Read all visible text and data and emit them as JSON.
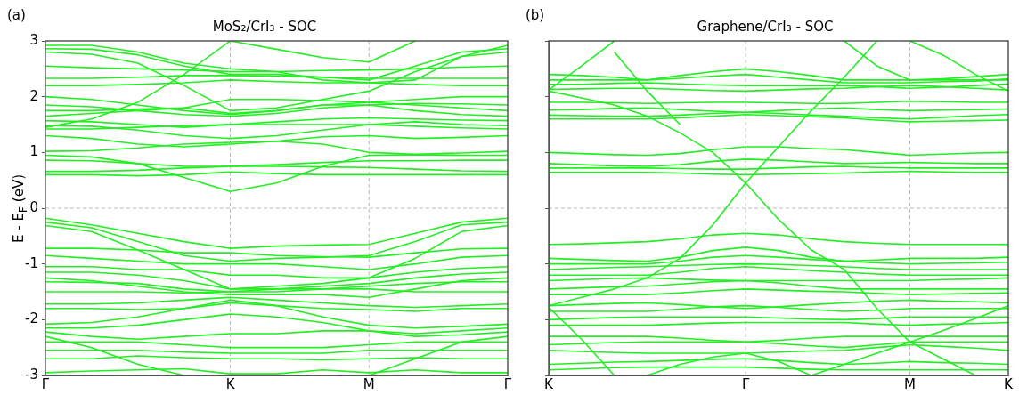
{
  "chart_data": [
    {
      "type": "line",
      "title": "MoS₂/CrI₃ - SOC",
      "ylabel": "E - E$_{F}$ (eV)",
      "annotations": [
        "(a)"
      ],
      "marker": "none",
      "legend": false,
      "categories": [
        "Γ",
        null,
        null,
        null,
        "K",
        null,
        null,
        "M",
        null,
        null,
        "Γ"
      ],
      "ylim": [
        -3,
        3
      ],
      "yticks": [
        -3,
        -2,
        -1,
        0,
        1,
        2,
        3
      ],
      "ref_lines": [
        {
          "axis": "x",
          "value": "K",
          "color": "#bbbbbb",
          "line_style": "dashed"
        },
        {
          "axis": "x",
          "value": "M",
          "color": "#bbbbbb",
          "line_style": "dashed"
        },
        {
          "axis": "y",
          "value": 0,
          "color": "#bbbbbb",
          "line_style": "dashed"
        }
      ],
      "series": [
        {
          "color": "#22ee22",
          "values": [
            0.6,
            0.6,
            0.58,
            0.6,
            0.65,
            0.62,
            0.6,
            0.6,
            0.6,
            0.6,
            0.6
          ]
        },
        {
          "color": "#22ee22",
          "values": [
            0.66,
            0.66,
            0.68,
            0.72,
            0.75,
            0.75,
            0.74,
            0.73,
            0.7,
            0.67,
            0.66
          ]
        },
        {
          "color": "#22ee22",
          "values": [
            0.95,
            0.92,
            0.8,
            0.55,
            0.3,
            0.45,
            0.75,
            0.95,
            0.96,
            0.95,
            0.95
          ]
        },
        {
          "color": "#22ee22",
          "values": [
            0.86,
            0.85,
            0.8,
            0.75,
            0.75,
            0.78,
            0.82,
            0.85,
            0.85,
            0.86,
            0.86
          ]
        },
        {
          "color": "#22ee22",
          "values": [
            1.02,
            1.03,
            1.08,
            1.15,
            1.18,
            1.2,
            1.15,
            1.0,
            0.97,
            0.99,
            1.02
          ]
        },
        {
          "color": "#22ee22",
          "values": [
            1.3,
            1.25,
            1.15,
            1.1,
            1.15,
            1.2,
            1.28,
            1.3,
            1.25,
            1.27,
            1.3
          ]
        },
        {
          "color": "#22ee22",
          "values": [
            1.42,
            1.42,
            1.45,
            1.48,
            1.5,
            1.5,
            1.5,
            1.5,
            1.47,
            1.44,
            1.42
          ]
        },
        {
          "color": "#22ee22",
          "values": [
            1.48,
            1.47,
            1.4,
            1.3,
            1.25,
            1.3,
            1.4,
            1.5,
            1.55,
            1.5,
            1.48
          ]
        },
        {
          "color": "#22ee22",
          "values": [
            1.57,
            1.55,
            1.5,
            1.45,
            1.5,
            1.55,
            1.6,
            1.62,
            1.6,
            1.58,
            1.57
          ]
        },
        {
          "color": "#22ee22",
          "values": [
            1.65,
            1.7,
            1.75,
            1.8,
            1.7,
            1.75,
            1.85,
            1.85,
            1.75,
            1.68,
            1.65
          ]
        },
        {
          "color": "#22ee22",
          "values": [
            1.75,
            1.75,
            1.78,
            1.8,
            1.95,
            1.95,
            1.93,
            1.9,
            1.85,
            1.8,
            1.75
          ]
        },
        {
          "color": "#22ee22",
          "values": [
            1.85,
            1.82,
            1.75,
            1.68,
            1.65,
            1.7,
            1.8,
            1.85,
            1.88,
            1.87,
            1.85
          ]
        },
        {
          "color": "#22ee22",
          "values": [
            2.0,
            1.95,
            1.85,
            1.75,
            1.68,
            1.75,
            1.85,
            1.9,
            1.95,
            2.0,
            2.0
          ]
        },
        {
          "color": "#22ee22",
          "values": [
            2.2,
            2.2,
            2.22,
            2.25,
            2.3,
            2.27,
            2.25,
            2.25,
            2.22,
            2.2,
            2.2
          ]
        },
        {
          "color": "#22ee22",
          "values": [
            2.33,
            2.33,
            2.35,
            2.38,
            2.38,
            2.37,
            2.35,
            2.33,
            2.33,
            2.33,
            2.33
          ]
        },
        {
          "color": "#22ee22",
          "values": [
            2.55,
            2.52,
            2.5,
            2.48,
            2.45,
            2.45,
            2.47,
            2.48,
            2.5,
            2.53,
            2.55
          ]
        },
        {
          "color": "#22ee22",
          "values": [
            2.8,
            2.76,
            2.6,
            2.2,
            1.75,
            1.8,
            1.95,
            2.1,
            2.45,
            2.72,
            2.8
          ]
        },
        {
          "color": "#22ee22",
          "values": [
            2.86,
            2.85,
            2.75,
            2.55,
            2.4,
            2.4,
            2.35,
            2.3,
            2.55,
            2.8,
            2.86
          ]
        },
        {
          "color": "#22ee22",
          "values": [
            1.45,
            1.6,
            1.9,
            2.4,
            3.0,
            2.85,
            2.7,
            2.62,
            3.0,
            null,
            null
          ]
        },
        {
          "color": "#22ee22",
          "values": [
            2.92,
            2.92,
            2.8,
            2.6,
            2.5,
            2.45,
            2.3,
            2.25,
            2.3,
            2.72,
            2.92
          ]
        },
        {
          "color": "#22ee22",
          "values": [
            -0.18,
            -0.3,
            -0.45,
            -0.6,
            -0.72,
            -0.68,
            -0.66,
            -0.65,
            -0.45,
            -0.25,
            -0.18
          ]
        },
        {
          "color": "#22ee22",
          "values": [
            -0.25,
            -0.35,
            -0.6,
            -0.85,
            -0.95,
            -0.9,
            -0.88,
            -0.85,
            -0.6,
            -0.3,
            -0.25
          ]
        },
        {
          "color": "#22ee22",
          "values": [
            -0.31,
            -0.42,
            -0.75,
            -1.1,
            -1.45,
            -1.4,
            -1.35,
            -1.25,
            -0.9,
            -0.42,
            -0.31
          ]
        },
        {
          "color": "#22ee22",
          "values": [
            -0.72,
            -0.72,
            -0.75,
            -0.8,
            -0.8,
            -0.85,
            -0.87,
            -0.88,
            -0.8,
            -0.73,
            -0.72
          ]
        },
        {
          "color": "#22ee22",
          "values": [
            -0.85,
            -0.9,
            -0.95,
            -1.0,
            -1.0,
            -1.0,
            -1.05,
            -1.1,
            -1.0,
            -0.88,
            -0.85
          ]
        },
        {
          "color": "#22ee22",
          "values": [
            -1.05,
            -1.05,
            -1.1,
            -1.1,
            -1.2,
            -1.2,
            -1.25,
            -1.25,
            -1.15,
            -1.08,
            -1.05
          ]
        },
        {
          "color": "#22ee22",
          "values": [
            -1.15,
            -1.15,
            -1.2,
            -1.3,
            -1.45,
            -1.45,
            -1.4,
            -1.35,
            -1.25,
            -1.18,
            -1.15
          ]
        },
        {
          "color": "#22ee22",
          "values": [
            -1.25,
            -1.3,
            -1.4,
            -1.5,
            -1.55,
            -1.55,
            -1.55,
            -1.6,
            -1.45,
            -1.3,
            -1.25
          ]
        },
        {
          "color": "#22ee22",
          "values": [
            -1.32,
            -1.33,
            -1.35,
            -1.45,
            -1.5,
            -1.5,
            -1.45,
            -1.4,
            -1.35,
            -1.32,
            -1.32
          ]
        },
        {
          "color": "#22ee22",
          "values": [
            -1.5,
            -1.5,
            -1.5,
            -1.52,
            -1.5,
            -1.45,
            -1.45,
            -1.45,
            -1.5,
            -1.5,
            -1.5
          ]
        },
        {
          "color": "#22ee22",
          "values": [
            -1.72,
            -1.72,
            -1.7,
            -1.65,
            -1.6,
            -1.65,
            -1.7,
            -1.75,
            -1.78,
            -1.75,
            -1.72
          ]
        },
        {
          "color": "#22ee22",
          "values": [
            -1.8,
            -1.8,
            -1.82,
            -1.8,
            -1.7,
            -1.75,
            -1.8,
            -1.82,
            -1.85,
            -1.8,
            -1.8
          ]
        },
        {
          "color": "#22ee22",
          "values": [
            -2.08,
            -2.05,
            -1.95,
            -1.8,
            -1.65,
            -1.75,
            -1.95,
            -2.1,
            -2.15,
            -2.12,
            -2.08
          ]
        },
        {
          "color": "#22ee22",
          "values": [
            -2.15,
            -2.15,
            -2.1,
            -2.0,
            -1.9,
            -1.95,
            -2.05,
            -2.2,
            -2.25,
            -2.2,
            -2.15
          ]
        },
        {
          "color": "#22ee22",
          "values": [
            -2.22,
            -2.3,
            -2.35,
            -2.3,
            -2.25,
            -2.25,
            -2.2,
            -2.2,
            -2.3,
            -2.27,
            -2.22
          ]
        },
        {
          "color": "#22ee22",
          "values": [
            -2.4,
            -2.4,
            -2.4,
            -2.45,
            -2.5,
            -2.5,
            -2.5,
            -2.45,
            -2.4,
            -2.4,
            -2.4
          ]
        },
        {
          "color": "#22ee22",
          "values": [
            -2.55,
            -2.55,
            -2.55,
            -2.58,
            -2.6,
            -2.6,
            -2.6,
            -2.55,
            -2.55,
            -2.55,
            -2.55
          ]
        },
        {
          "color": "#22ee22",
          "values": [
            -2.7,
            -2.7,
            -2.65,
            -2.68,
            -2.7,
            -2.7,
            -2.72,
            -2.7,
            -2.68,
            -2.7,
            -2.7
          ]
        },
        {
          "color": "#22ee22",
          "values": [
            -2.95,
            -2.92,
            -2.9,
            -2.88,
            -2.97,
            -2.97,
            -2.9,
            -2.95,
            -2.9,
            -2.95,
            -2.95
          ]
        },
        {
          "color": "#22ee22",
          "values": [
            -2.3,
            -2.5,
            -2.8,
            -3.0,
            null,
            null,
            null,
            null,
            null,
            null,
            null
          ]
        },
        {
          "color": "#22ee22",
          "values": [
            null,
            null,
            null,
            null,
            null,
            null,
            null,
            -3.0,
            -2.7,
            -2.4,
            -2.3
          ]
        }
      ]
    },
    {
      "type": "line",
      "title": "Graphene/CrI₃ - SOC",
      "annotations": [
        "(b)"
      ],
      "marker": "none",
      "legend": false,
      "tick_labels": "x",
      "categories": [
        "K",
        null,
        null,
        null,
        null,
        null,
        "Γ",
        null,
        null,
        null,
        null,
        "M",
        null,
        null,
        "K"
      ],
      "ylim": [
        -3,
        3
      ],
      "yticks": [
        -3,
        -2,
        -1,
        0,
        1,
        2,
        3
      ],
      "ref_lines": [
        {
          "axis": "x",
          "value": "Γ",
          "color": "#bbbbbb",
          "line_style": "dashed"
        },
        {
          "axis": "x",
          "value": "M",
          "color": "#bbbbbb",
          "line_style": "dashed"
        },
        {
          "axis": "y",
          "value": 0,
          "color": "#bbbbbb",
          "line_style": "dashed"
        }
      ],
      "series": [
        {
          "color": "#22ee22",
          "values": [
            2.1,
            1.98,
            1.85,
            1.65,
            1.35,
            1.0,
            0.45,
            -0.2,
            -0.75,
            -1.1,
            -1.8,
            -2.4,
            -2.7,
            -3.0,
            null
          ]
        },
        {
          "color": "#22ee22",
          "values": [
            -1.75,
            -1.6,
            -1.45,
            -1.25,
            -0.9,
            -0.3,
            0.45,
            1.1,
            1.75,
            2.35,
            3.0,
            null,
            null,
            null,
            null
          ]
        },
        {
          "color": "#22ee22",
          "values": [
            2.12,
            2.55,
            3.0,
            null,
            null,
            null,
            null,
            null,
            null,
            null,
            null,
            null,
            null,
            null,
            null
          ]
        },
        {
          "color": "#22ee22",
          "values": [
            null,
            null,
            2.8,
            2.1,
            1.5,
            null,
            null,
            null,
            null,
            null,
            null,
            null,
            null,
            null,
            null
          ]
        },
        {
          "color": "#22ee22",
          "values": [
            null,
            null,
            null,
            null,
            null,
            null,
            null,
            null,
            null,
            3.0,
            2.55,
            2.3,
            2.3,
            2.3,
            2.3
          ]
        },
        {
          "color": "#22ee22",
          "values": [
            null,
            null,
            null,
            null,
            null,
            null,
            null,
            null,
            null,
            null,
            null,
            3.0,
            2.75,
            2.4,
            2.1
          ]
        },
        {
          "color": "#22ee22",
          "values": [
            2.4,
            2.38,
            2.35,
            2.3,
            2.38,
            2.45,
            2.5,
            2.45,
            2.38,
            2.3,
            2.3,
            2.3,
            2.32,
            2.36,
            2.4
          ]
        },
        {
          "color": "#22ee22",
          "values": [
            2.3,
            2.3,
            2.3,
            2.3,
            2.33,
            2.37,
            2.4,
            2.35,
            2.3,
            2.25,
            2.25,
            2.25,
            2.27,
            2.28,
            2.32
          ]
        },
        {
          "color": "#22ee22",
          "values": [
            2.22,
            2.22,
            2.24,
            2.25,
            2.23,
            2.21,
            2.2,
            2.2,
            2.2,
            2.2,
            2.18,
            2.15,
            2.17,
            2.2,
            2.23
          ]
        },
        {
          "color": "#22ee22",
          "values": [
            2.13,
            2.14,
            2.15,
            2.15,
            2.13,
            2.11,
            2.1,
            2.12,
            2.14,
            2.15,
            2.18,
            2.2,
            2.18,
            2.15,
            2.12
          ]
        },
        {
          "color": "#22ee22",
          "values": [
            1.9,
            1.9,
            1.89,
            1.88,
            1.89,
            1.9,
            1.9,
            1.89,
            1.88,
            1.88,
            1.9,
            1.92,
            1.91,
            1.9,
            1.9
          ]
        },
        {
          "color": "#22ee22",
          "values": [
            1.76,
            1.77,
            1.79,
            1.8,
            1.77,
            1.74,
            1.72,
            1.75,
            1.78,
            1.8,
            1.77,
            1.75,
            1.76,
            1.77,
            1.78
          ]
        },
        {
          "color": "#22ee22",
          "values": [
            1.67,
            1.66,
            1.65,
            1.65,
            1.67,
            1.7,
            1.72,
            1.7,
            1.67,
            1.65,
            1.62,
            1.6,
            1.63,
            1.66,
            1.68
          ]
        },
        {
          "color": "#22ee22",
          "values": [
            1.6,
            1.6,
            1.6,
            1.6,
            1.62,
            1.65,
            1.68,
            1.66,
            1.64,
            1.62,
            1.58,
            1.55,
            1.56,
            1.57,
            1.58
          ]
        },
        {
          "color": "#22ee22",
          "values": [
            1.0,
            0.98,
            0.96,
            0.95,
            0.98,
            1.05,
            1.1,
            1.1,
            1.07,
            1.05,
            1.0,
            0.95,
            0.97,
            0.99,
            1.0
          ]
        },
        {
          "color": "#22ee22",
          "values": [
            0.8,
            0.78,
            0.76,
            0.75,
            0.78,
            0.84,
            0.88,
            0.86,
            0.83,
            0.8,
            0.81,
            0.82,
            0.81,
            0.8,
            0.8
          ]
        },
        {
          "color": "#22ee22",
          "values": [
            0.72,
            0.72,
            0.72,
            0.72,
            0.71,
            0.7,
            0.7,
            0.72,
            0.74,
            0.75,
            0.73,
            0.72,
            0.72,
            0.72,
            0.72
          ]
        },
        {
          "color": "#22ee22",
          "values": [
            0.64,
            0.64,
            0.64,
            0.64,
            0.63,
            0.61,
            0.6,
            0.61,
            0.62,
            0.63,
            0.65,
            0.66,
            0.65,
            0.64,
            0.64
          ]
        },
        {
          "color": "#22ee22",
          "values": [
            -0.65,
            -0.64,
            -0.62,
            -0.6,
            -0.55,
            -0.48,
            -0.45,
            -0.48,
            -0.55,
            -0.6,
            -0.63,
            -0.65,
            -0.65,
            -0.65,
            -0.65
          ]
        },
        {
          "color": "#22ee22",
          "values": [
            -0.9,
            -0.92,
            -0.94,
            -0.95,
            -0.88,
            -0.76,
            -0.7,
            -0.76,
            -0.88,
            -0.95,
            -0.93,
            -0.9,
            -0.9,
            -0.9,
            -0.88
          ]
        },
        {
          "color": "#22ee22",
          "values": [
            -1.0,
            -1.0,
            -1.0,
            -1.0,
            -0.95,
            -0.88,
            -0.85,
            -0.88,
            -0.92,
            -0.95,
            -0.98,
            -1.0,
            -0.99,
            -0.98,
            -0.97
          ]
        },
        {
          "color": "#22ee22",
          "values": [
            -1.1,
            -1.08,
            -1.06,
            -1.05,
            -1.03,
            -1.01,
            -1.0,
            -1.01,
            -1.03,
            -1.05,
            -1.08,
            -1.1,
            -1.1,
            -1.1,
            -1.1
          ]
        },
        {
          "color": "#22ee22",
          "values": [
            -1.2,
            -1.2,
            -1.2,
            -1.2,
            -1.15,
            -1.08,
            -1.05,
            -1.08,
            -1.12,
            -1.15,
            -1.18,
            -1.2,
            -1.2,
            -1.2,
            -1.2
          ]
        },
        {
          "color": "#22ee22",
          "values": [
            -1.3,
            -1.28,
            -1.26,
            -1.25,
            -1.27,
            -1.29,
            -1.3,
            -1.3,
            -1.3,
            -1.3,
            -1.3,
            -1.3,
            -1.28,
            -1.27,
            -1.25
          ]
        },
        {
          "color": "#22ee22",
          "values": [
            -1.45,
            -1.43,
            -1.41,
            -1.4,
            -1.36,
            -1.32,
            -1.3,
            -1.34,
            -1.4,
            -1.45,
            -1.45,
            -1.45,
            -1.45,
            -1.45,
            -1.45
          ]
        },
        {
          "color": "#22ee22",
          "values": [
            -1.55,
            -1.55,
            -1.55,
            -1.55,
            -1.52,
            -1.48,
            -1.45,
            -1.47,
            -1.49,
            -1.5,
            -1.53,
            -1.55,
            -1.54,
            -1.53,
            -1.52
          ]
        },
        {
          "color": "#22ee22",
          "values": [
            -1.75,
            -1.73,
            -1.71,
            -1.7,
            -1.73,
            -1.77,
            -1.8,
            -1.77,
            -1.73,
            -1.7,
            -1.67,
            -1.65,
            -1.67,
            -1.68,
            -1.7
          ]
        },
        {
          "color": "#22ee22",
          "values": [
            -1.85,
            -1.85,
            -1.85,
            -1.85,
            -1.81,
            -1.77,
            -1.75,
            -1.78,
            -1.82,
            -1.85,
            -1.83,
            -1.8,
            -1.8,
            -1.8,
            -1.8
          ]
        },
        {
          "color": "#22ee22",
          "values": [
            -2.0,
            -1.98,
            -1.96,
            -1.95,
            -1.95,
            -1.95,
            -1.95,
            -1.97,
            -1.99,
            -2.0,
            -1.98,
            -1.95,
            -1.95,
            -1.95,
            -1.95
          ]
        },
        {
          "color": "#22ee22",
          "values": [
            -2.1,
            -2.1,
            -2.1,
            -2.1,
            -2.08,
            -2.06,
            -2.05,
            -2.05,
            -2.05,
            -2.05,
            -2.08,
            -2.1,
            -2.08,
            -2.07,
            -2.05
          ]
        },
        {
          "color": "#22ee22",
          "values": [
            -2.3,
            -2.3,
            -2.3,
            -2.3,
            -2.33,
            -2.37,
            -2.4,
            -2.37,
            -2.33,
            -2.3,
            -2.3,
            -2.3,
            -2.3,
            -2.3,
            -2.3
          ]
        },
        {
          "color": "#22ee22",
          "values": [
            -2.45,
            -2.43,
            -2.41,
            -2.4,
            -2.4,
            -2.4,
            -2.4,
            -2.43,
            -2.47,
            -2.5,
            -2.45,
            -2.4,
            -2.4,
            -2.4,
            -2.4
          ]
        },
        {
          "color": "#22ee22",
          "values": [
            -2.55,
            -2.57,
            -2.59,
            -2.6,
            -2.6,
            -2.6,
            -2.6,
            -2.58,
            -2.56,
            -2.55,
            -2.5,
            -2.45,
            -2.48,
            -2.51,
            -2.55
          ]
        },
        {
          "color": "#22ee22",
          "values": [
            -2.8,
            -2.78,
            -2.76,
            -2.75,
            -2.73,
            -2.71,
            -2.7,
            -2.73,
            -2.77,
            -2.8,
            -2.78,
            -2.75,
            -2.77,
            -2.78,
            -2.8
          ]
        },
        {
          "color": "#22ee22",
          "values": [
            -2.9,
            -2.88,
            -2.86,
            -2.85,
            -2.85,
            -2.85,
            -2.85,
            -2.87,
            -2.89,
            -2.9,
            -2.9,
            -2.9,
            -2.9,
            -2.9,
            -2.9
          ]
        },
        {
          "color": "#22ee22",
          "values": [
            null,
            null,
            null,
            null,
            null,
            null,
            null,
            null,
            -3.0,
            -2.8,
            -2.6,
            -2.4,
            -2.2,
            -1.98,
            -1.75
          ]
        },
        {
          "color": "#22ee22",
          "values": [
            -1.78,
            -2.35,
            -3.0,
            null,
            null,
            null,
            null,
            null,
            null,
            null,
            null,
            null,
            null,
            null,
            null
          ]
        },
        {
          "color": "#22ee22",
          "values": [
            null,
            null,
            null,
            -3.0,
            -2.8,
            -2.67,
            -2.6,
            -2.75,
            -3.0,
            null,
            null,
            null,
            null,
            null,
            null
          ]
        }
      ]
    }
  ]
}
